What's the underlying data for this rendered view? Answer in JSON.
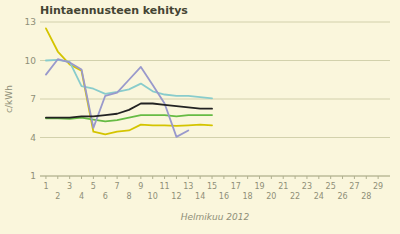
{
  "chart_data": {
    "type": "line",
    "title": "Hintaennusteen kehitys",
    "xlabel": "Helmikuu 2012",
    "ylabel": "c/kWh",
    "xlim": [
      0.5,
      30
    ],
    "xticks": [
      1,
      2,
      3,
      4,
      5,
      6,
      7,
      8,
      9,
      10,
      11,
      12,
      13,
      14,
      15,
      16,
      17,
      18,
      19,
      20,
      21,
      22,
      23,
      24,
      25,
      26,
      27,
      28,
      29
    ],
    "ylim": [
      1,
      13
    ],
    "yticks": [
      1,
      4,
      7,
      10,
      13
    ],
    "grid": true,
    "series": [
      {
        "color": "#d4c400",
        "x": [
          1,
          2,
          3,
          4,
          5,
          6,
          7,
          8,
          9,
          10,
          11,
          12,
          13,
          14,
          15
        ],
        "values": [
          12.5,
          10.7,
          9.7,
          9.2,
          4.45,
          4.25,
          4.45,
          4.55,
          5.0,
          4.95,
          4.95,
          4.9,
          4.95,
          5.0,
          4.95
        ]
      },
      {
        "color": "#88cccc",
        "x": [
          1,
          2,
          3,
          4,
          5,
          6,
          7,
          8,
          9,
          10,
          11,
          12,
          13,
          14,
          15
        ],
        "values": [
          10.0,
          10.05,
          9.9,
          8.0,
          7.8,
          7.4,
          7.55,
          7.75,
          8.2,
          7.6,
          7.35,
          7.25,
          7.25,
          7.15,
          7.05
        ]
      },
      {
        "color": "#66bb44",
        "x": [
          1,
          2,
          3,
          4,
          5,
          6,
          7,
          8,
          9,
          10,
          11,
          12,
          13,
          14,
          15
        ],
        "values": [
          5.5,
          5.5,
          5.45,
          5.55,
          5.4,
          5.25,
          5.35,
          5.55,
          5.75,
          5.75,
          5.75,
          5.65,
          5.75,
          5.75,
          5.75
        ]
      },
      {
        "color": "#9999cc",
        "x": [
          1,
          2,
          3,
          4,
          5,
          6,
          7,
          8,
          9,
          10,
          11,
          12,
          13
        ],
        "values": [
          8.9,
          10.1,
          9.85,
          9.3,
          4.75,
          7.25,
          7.5,
          8.5,
          9.5,
          8.1,
          6.65,
          4.05,
          4.55
        ]
      },
      {
        "color": "#222222",
        "x": [
          1,
          2,
          3,
          4,
          5,
          6,
          7,
          8,
          9,
          10,
          11,
          12,
          13,
          14,
          15
        ],
        "values": [
          5.55,
          5.55,
          5.55,
          5.65,
          5.65,
          5.75,
          5.85,
          6.15,
          6.65,
          6.65,
          6.55,
          6.45,
          6.35,
          6.25,
          6.25
        ]
      }
    ]
  }
}
